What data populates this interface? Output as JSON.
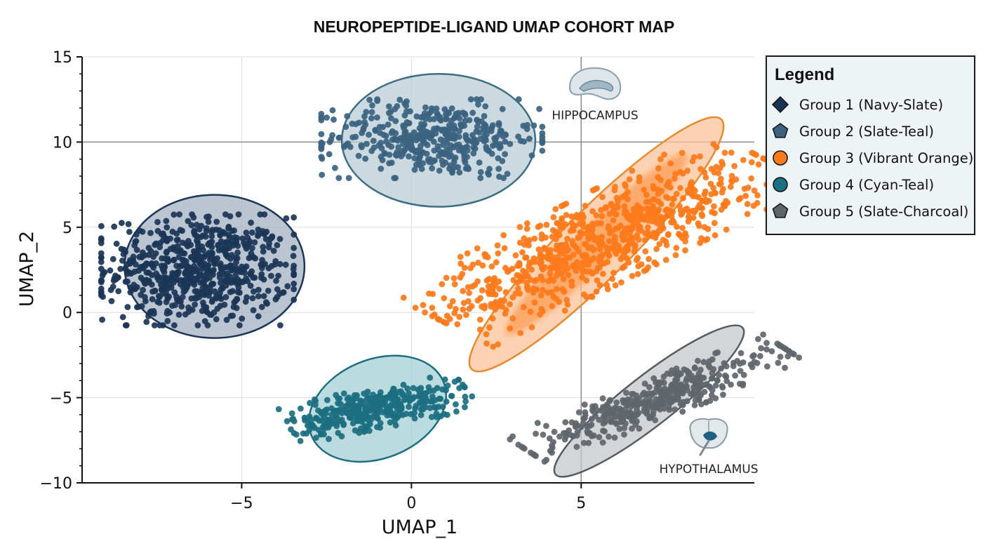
{
  "chart_data": {
    "type": "scatter",
    "title": "NEUROPEPTIDE-LIGAND UMAP COHORT MAP",
    "xlabel": "UMAP_1",
    "ylabel": "UMAP_2",
    "xlim": [
      -9.7,
      10.1
    ],
    "ylim": [
      -10,
      15
    ],
    "xticks": [
      -5,
      0,
      5
    ],
    "xtick_labels": [
      "−5",
      "0",
      "5"
    ],
    "yticks": [
      15,
      10,
      5,
      0,
      -5,
      -10
    ],
    "ytick_labels": [
      "15",
      "10",
      "5",
      "0",
      "−5",
      "−10"
    ],
    "grid": true,
    "reference_lines": {
      "x": 5,
      "y": 10
    },
    "legend": {
      "title": "Legend",
      "placement": "right",
      "entries": [
        {
          "label": "Group 1 (Navy-Slate)",
          "marker": "diamond",
          "color": "#1b3556"
        },
        {
          "label": "Group 2 (Slate-Teal)",
          "marker": "pentagon",
          "color": "#3b6380"
        },
        {
          "label": "Group 3 (Vibrant Orange)",
          "marker": "circle",
          "color": "#ff7a1a"
        },
        {
          "label": "Group 4 (Cyan-Teal)",
          "marker": "circle",
          "color": "#1b6f80"
        },
        {
          "label": "Group 5 (Slate-Charcoal)",
          "marker": "pentagon",
          "color": "#5f666b"
        }
      ]
    },
    "series": [
      {
        "name": "Group 1 (Navy-Slate)",
        "color": "#1b3556",
        "n_points": 650,
        "center": [
          -6.3,
          2.5
        ],
        "spread": [
          1.35,
          1.55
        ],
        "ellipse": {
          "center": [
            -5.8,
            2.7
          ],
          "radii": [
            2.65,
            4.2
          ],
          "angle_deg": 0
        },
        "fill": "#a4b0c2",
        "edge": "#1b3556"
      },
      {
        "name": "Group 2 (Slate-Teal)",
        "color": "#3b6380",
        "n_points": 420,
        "center": [
          0.6,
          10.2
        ],
        "spread": [
          1.55,
          1.1
        ],
        "ellipse": {
          "center": [
            0.8,
            10.1
          ],
          "radii": [
            2.85,
            3.9
          ],
          "angle_deg": 0
        },
        "fill": "#b8cdd6",
        "edge": "#3e6e82"
      },
      {
        "name": "Group 3 (Vibrant Orange)",
        "color": "#ff7a1a",
        "n_points": 780,
        "center": [
          5.6,
          4.3
        ],
        "spread": [
          3.2,
          1.05
        ],
        "ellipse": {
          "center": [
            5.45,
            4.0
          ],
          "radii": [
            5.2,
            2.0
          ],
          "angle_deg": 45
        },
        "fill": "#fbc39a",
        "edge": "#e58a2e"
      },
      {
        "name": "Group 4 (Cyan-Teal)",
        "color": "#1b6f80",
        "n_points": 360,
        "center": [
          -1.0,
          -5.6
        ],
        "spread": [
          1.35,
          0.55
        ],
        "ellipse": {
          "center": [
            -1.0,
            -5.65
          ],
          "radii": [
            2.1,
            2.9
          ],
          "angle_deg": 22
        },
        "fill": "#a6cfd4",
        "edge": "#1b6f80"
      },
      {
        "name": "Group 5 (Slate-Charcoal)",
        "color": "#5f666b",
        "n_points": 420,
        "center": [
          7.2,
          -5.1
        ],
        "spread": [
          2.3,
          0.5
        ],
        "ellipse": {
          "center": [
            7.0,
            -5.2
          ],
          "radii": [
            3.5,
            1.45
          ],
          "angle_deg": 38
        },
        "fill": "#c4c7c9",
        "edge": "#555b60"
      }
    ],
    "annotations": [
      {
        "text": "HIPPOCAMPUS",
        "icon": "hippocampus-icon",
        "x": 6.0,
        "y": 11.6
      },
      {
        "text": "HYPOTHALAMUS",
        "icon": "hypothalamus-icon",
        "x": 8.5,
        "y": -8.9
      }
    ]
  }
}
